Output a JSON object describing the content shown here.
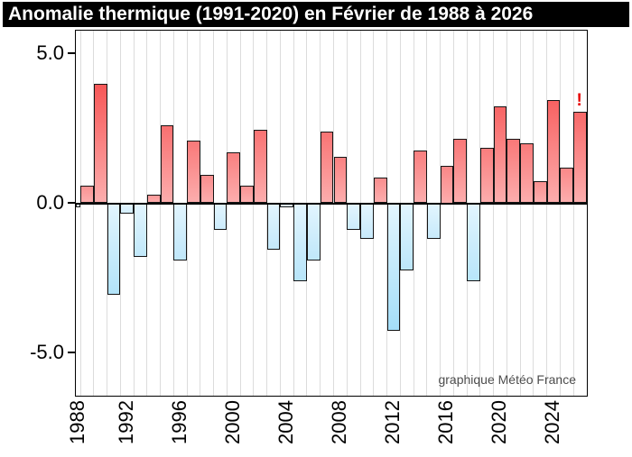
{
  "title": "Anomalie thermique (1991-2020) en Février de 1988 à 2026",
  "credit": "graphique Météo France",
  "alert": {
    "text": "!",
    "year": 2026,
    "color": "#e60000"
  },
  "colors": {
    "title_bg": "#000000",
    "title_fg": "#ffffff",
    "positive_top_strong": "#f75353",
    "positive_top_light": "#fb9d9d",
    "positive_bottom": "#fcadad",
    "negative_top": "#e2f5fe",
    "negative_bottom_light": "#d7effc",
    "negative_bottom_strong": "#a3def8",
    "bar_border": "#151515",
    "grid": "#dcdcdc",
    "credit_fg": "#4d4d4d"
  },
  "chart_data": {
    "type": "bar",
    "title": "Anomalie thermique (1991-2020) en Février de 1988 à 2026",
    "xlabel": "",
    "ylabel": "",
    "x": [
      1988,
      1989,
      1990,
      1991,
      1992,
      1993,
      1994,
      1995,
      1996,
      1997,
      1998,
      1999,
      2000,
      2001,
      2002,
      2003,
      2004,
      2005,
      2006,
      2007,
      2008,
      2009,
      2010,
      2011,
      2012,
      2013,
      2014,
      2015,
      2016,
      2017,
      2018,
      2019,
      2020,
      2021,
      2022,
      2023,
      2024,
      2025,
      2026
    ],
    "values": [
      -0.15,
      0.6,
      4.0,
      -3.05,
      -0.35,
      -1.8,
      0.3,
      2.6,
      -1.9,
      2.1,
      0.95,
      -0.9,
      1.7,
      0.6,
      2.45,
      -1.55,
      -0.15,
      -2.6,
      -1.9,
      2.4,
      1.55,
      -0.9,
      -1.2,
      0.85,
      -4.25,
      -2.25,
      1.75,
      -1.2,
      1.25,
      2.15,
      -2.6,
      1.85,
      3.25,
      2.15,
      2.0,
      0.75,
      3.45,
      1.2,
      3.05
    ],
    "ylim": [
      -6.4,
      5.8
    ],
    "yticks": [
      5.0,
      0.0,
      -5.0
    ],
    "ytick_labels": [
      "5.0",
      "0.0",
      "-5.0"
    ],
    "xtick_years": [
      1988,
      1992,
      1996,
      2000,
      2004,
      2008,
      2012,
      2016,
      2020,
      2024
    ],
    "grid": "vertical-only",
    "legend": "none",
    "annotation": {
      "text": "!",
      "year": 2026
    }
  }
}
